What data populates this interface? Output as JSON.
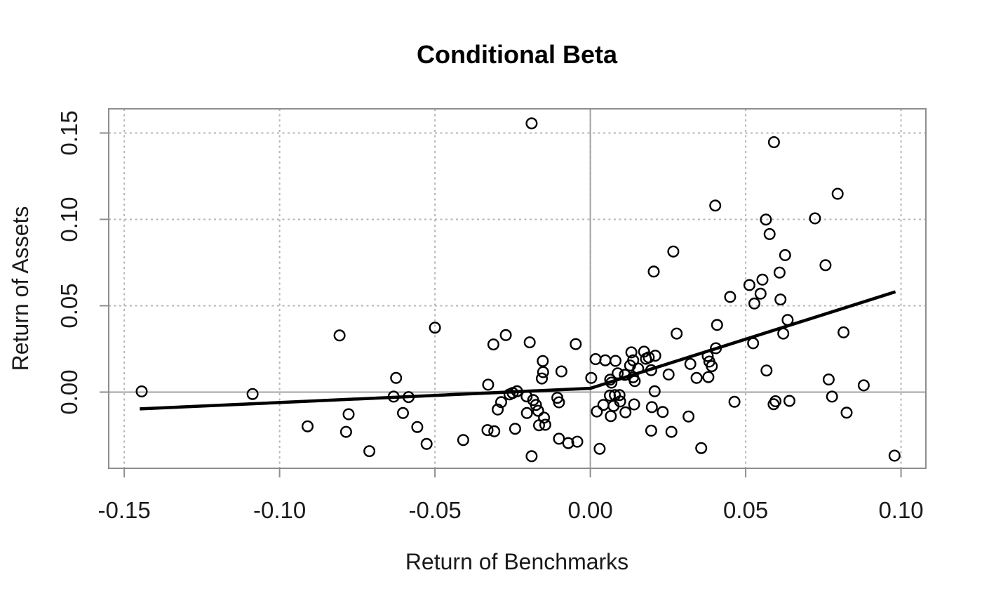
{
  "chart_data": {
    "type": "scatter",
    "title": "Conditional Beta",
    "xlabel": "Return of Benchmarks",
    "ylabel": "Return of Assets",
    "xlim": [
      -0.155,
      0.108
    ],
    "ylim": [
      -0.0441,
      0.164
    ],
    "x_tick_values": [
      -0.15,
      -0.1,
      -0.05,
      0.0,
      0.05,
      0.1
    ],
    "x_tick_labels": [
      "-0.15",
      "-0.10",
      "-0.05",
      "0.00",
      "0.05",
      "0.10"
    ],
    "y_tick_values": [
      0.0,
      0.05,
      0.1,
      0.15
    ],
    "y_tick_labels": [
      "0.00",
      "0.05",
      "0.10",
      "0.15"
    ],
    "grid": true,
    "zero_lines": true,
    "legend_position": "none",
    "marker": "open-circle",
    "fit_line": [
      [
        -0.145,
        -0.0097
      ],
      [
        0.0,
        0.0022
      ],
      [
        0.0982,
        0.0581
      ]
    ],
    "points": [
      [
        -0.1444,
        0.0004
      ],
      [
        -0.1087,
        -0.0011
      ],
      [
        -0.091,
        -0.0198
      ],
      [
        -0.0807,
        0.0328
      ],
      [
        -0.0786,
        -0.023
      ],
      [
        -0.0778,
        -0.0128
      ],
      [
        -0.0711,
        -0.0342
      ],
      [
        -0.0633,
        -0.0026
      ],
      [
        -0.0625,
        0.0082
      ],
      [
        -0.0603,
        -0.0121
      ],
      [
        -0.0585,
        -0.0029
      ],
      [
        -0.0557,
        -0.0202
      ],
      [
        -0.0527,
        -0.03
      ],
      [
        -0.05,
        0.0373
      ],
      [
        -0.0409,
        -0.0277
      ],
      [
        -0.0331,
        -0.022
      ],
      [
        -0.0329,
        0.0043
      ],
      [
        -0.0312,
        0.0276
      ],
      [
        -0.0309,
        -0.0227
      ],
      [
        -0.0298,
        -0.0101
      ],
      [
        -0.0287,
        -0.0058
      ],
      [
        -0.0272,
        0.033
      ],
      [
        -0.026,
        -0.0013
      ],
      [
        -0.025,
        -0.0005
      ],
      [
        -0.0242,
        -0.0212
      ],
      [
        -0.0236,
        0.0005
      ],
      [
        -0.0205,
        -0.0025
      ],
      [
        -0.0204,
        -0.0121
      ],
      [
        -0.0195,
        0.0288
      ],
      [
        -0.0189,
        0.1556
      ],
      [
        -0.0189,
        -0.0371
      ],
      [
        -0.0184,
        -0.0046
      ],
      [
        -0.0175,
        -0.0074
      ],
      [
        -0.0168,
        -0.0108
      ],
      [
        -0.0165,
        -0.0192
      ],
      [
        -0.0156,
        0.0079
      ],
      [
        -0.0153,
        0.018
      ],
      [
        -0.0152,
        0.0116
      ],
      [
        -0.0149,
        -0.0148
      ],
      [
        -0.0145,
        -0.0189
      ],
      [
        -0.0106,
        -0.0033
      ],
      [
        -0.0101,
        -0.0059
      ],
      [
        -0.0101,
        -0.027
      ],
      [
        -0.0093,
        0.012
      ],
      [
        -0.0071,
        -0.0295
      ],
      [
        -0.0047,
        0.0278
      ],
      [
        -0.0042,
        -0.0287
      ],
      [
        0.0003,
        0.0082
      ],
      [
        0.0017,
        0.0191
      ],
      [
        0.0021,
        -0.0112
      ],
      [
        0.003,
        -0.0328
      ],
      [
        0.0042,
        -0.0074
      ],
      [
        0.0048,
        0.0184
      ],
      [
        0.0063,
        -0.002
      ],
      [
        0.0064,
        0.0072
      ],
      [
        0.0066,
        -0.0139
      ],
      [
        0.0068,
        0.0055
      ],
      [
        0.0075,
        -0.008
      ],
      [
        0.0079,
        -0.0017
      ],
      [
        0.0081,
        0.0181
      ],
      [
        0.0088,
        0.0109
      ],
      [
        0.0094,
        -0.0017
      ],
      [
        0.0096,
        -0.0054
      ],
      [
        0.0111,
        0.01
      ],
      [
        0.0113,
        -0.0117
      ],
      [
        0.0128,
        0.0154
      ],
      [
        0.0132,
        0.023
      ],
      [
        0.0138,
        0.0184
      ],
      [
        0.0138,
        0.0086
      ],
      [
        0.0141,
        -0.0071
      ],
      [
        0.0143,
        0.0064
      ],
      [
        0.0154,
        0.0136
      ],
      [
        0.0173,
        0.0234
      ],
      [
        0.0179,
        0.0193
      ],
      [
        0.0188,
        0.0201
      ],
      [
        0.0196,
        -0.0223
      ],
      [
        0.0196,
        0.0127
      ],
      [
        0.0198,
        -0.0087
      ],
      [
        0.0204,
        0.0698
      ],
      [
        0.0207,
        0.0005
      ],
      [
        0.0209,
        0.0211
      ],
      [
        0.0233,
        -0.0115
      ],
      [
        0.0252,
        0.0102
      ],
      [
        0.0261,
        -0.023
      ],
      [
        0.0267,
        0.0814
      ],
      [
        0.0278,
        0.0339
      ],
      [
        0.0316,
        -0.0141
      ],
      [
        0.0322,
        0.0163
      ],
      [
        0.0342,
        0.0082
      ],
      [
        0.0357,
        -0.0324
      ],
      [
        0.0378,
        0.0209
      ],
      [
        0.038,
        0.0087
      ],
      [
        0.0383,
        0.0177
      ],
      [
        0.0391,
        0.015
      ],
      [
        0.0402,
        0.108
      ],
      [
        0.0404,
        0.0254
      ],
      [
        0.0408,
        0.0389
      ],
      [
        0.045,
        0.0551
      ],
      [
        0.0464,
        -0.0056
      ],
      [
        0.0512,
        0.062
      ],
      [
        0.0524,
        0.0283
      ],
      [
        0.0528,
        0.0513
      ],
      [
        0.0548,
        0.057
      ],
      [
        0.0554,
        0.0651
      ],
      [
        0.0565,
        0.0999
      ],
      [
        0.0567,
        0.0125
      ],
      [
        0.0577,
        0.0915
      ],
      [
        0.059,
        -0.007
      ],
      [
        0.0591,
        0.1447
      ],
      [
        0.0596,
        -0.0053
      ],
      [
        0.0609,
        0.0692
      ],
      [
        0.0612,
        0.0536
      ],
      [
        0.0621,
        0.0339
      ],
      [
        0.0627,
        0.0793
      ],
      [
        0.0635,
        0.0418
      ],
      [
        0.0641,
        -0.0051
      ],
      [
        0.0723,
        0.1006
      ],
      [
        0.0757,
        0.0735
      ],
      [
        0.0767,
        0.0073
      ],
      [
        0.0778,
        -0.0026
      ],
      [
        0.0796,
        0.1148
      ],
      [
        0.0815,
        0.0346
      ],
      [
        0.0825,
        -0.0119
      ],
      [
        0.088,
        0.0039
      ],
      [
        0.0979,
        -0.0368
      ]
    ],
    "colors": {
      "point": "#000000",
      "fit_line": "#000000",
      "grid": "#b5b5b5",
      "zero_line": "#a3a3a3",
      "border": "#8e8e8e",
      "tick": "#8e8e8e",
      "text": "#1a1a1a"
    }
  }
}
